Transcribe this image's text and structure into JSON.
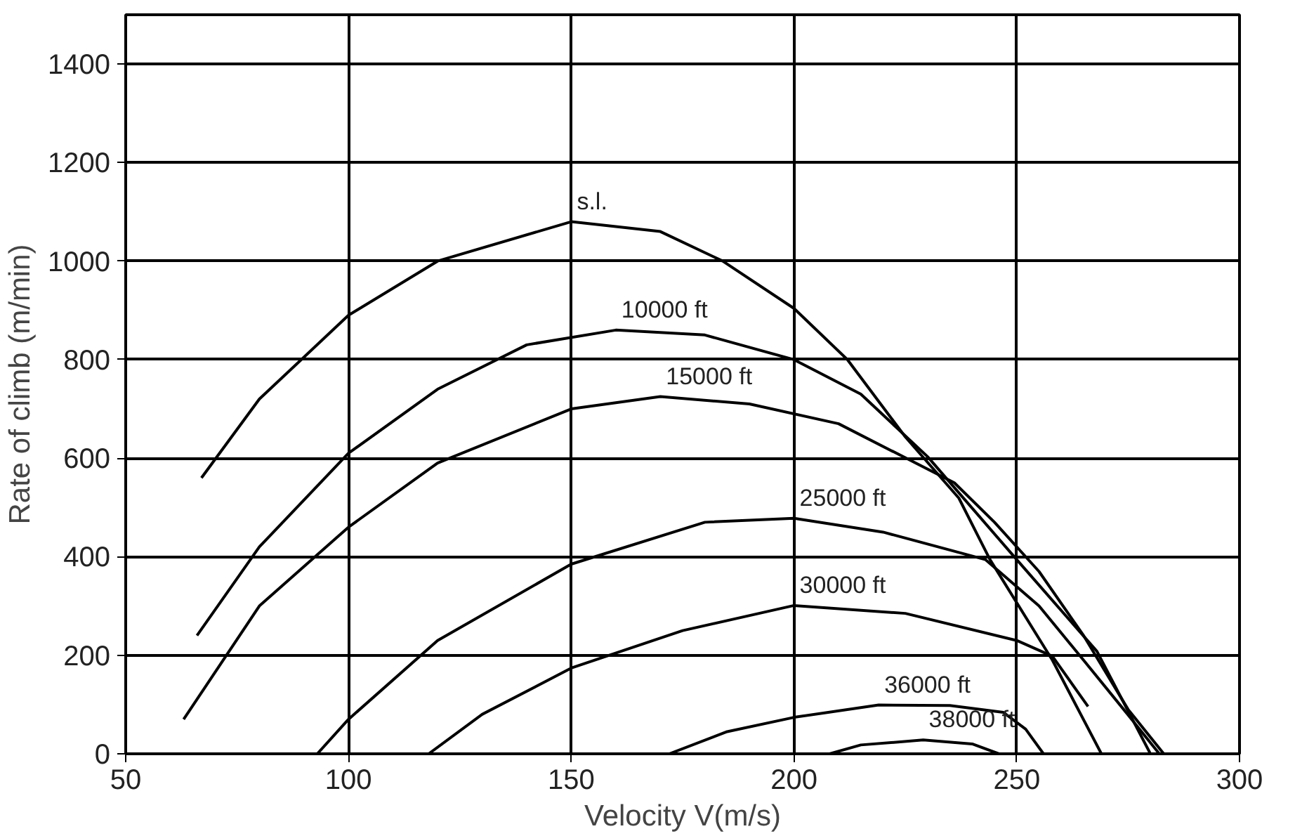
{
  "chart_data": {
    "type": "line",
    "xlabel": "Velocity V(m/s)",
    "ylabel": "Rate of climb (m/min)",
    "xlim": [
      50,
      300
    ],
    "ylim": [
      0,
      1500
    ],
    "xticks": [
      50,
      100,
      150,
      200,
      250,
      300
    ],
    "yticks": [
      0,
      200,
      400,
      600,
      800,
      1000,
      1200,
      1400
    ],
    "grid": true,
    "line_style": "solid",
    "series": [
      {
        "name": "s.l.",
        "color": "#000000",
        "x": [
          67,
          80,
          100,
          120,
          150,
          170,
          184,
          200,
          212,
          225,
          237,
          244,
          258,
          269
        ],
        "values": [
          560,
          720,
          890,
          1000,
          1080,
          1060,
          1000,
          904,
          800,
          643,
          519,
          394,
          190,
          0
        ]
      },
      {
        "name": "10000 ft",
        "color": "#000000",
        "x": [
          66,
          80,
          100,
          120,
          140,
          160,
          180,
          200,
          215,
          230,
          250,
          268,
          280
        ],
        "values": [
          240,
          420,
          610,
          740,
          830,
          860,
          850,
          800,
          730,
          603,
          394,
          208,
          0
        ]
      },
      {
        "name": "15000 ft",
        "color": "#000000",
        "x": [
          63,
          80,
          100,
          120,
          150,
          170,
          190,
          210,
          236,
          245,
          255,
          265,
          275,
          283
        ],
        "values": [
          70,
          300,
          460,
          590,
          700,
          725,
          710,
          670,
          550,
          470,
          370,
          240,
          90,
          0
        ]
      },
      {
        "name": "25000 ft",
        "color": "#000000",
        "x": [
          93,
          100,
          120,
          150,
          180,
          200,
          220,
          243,
          255,
          265,
          274,
          282
        ],
        "values": [
          0,
          70,
          230,
          385,
          470,
          478,
          450,
          394,
          300,
          190,
          90,
          0
        ]
      },
      {
        "name": "30000 ft",
        "color": "#000000",
        "x": [
          118,
          130,
          150,
          175,
          200,
          225,
          250,
          258,
          266
        ],
        "values": [
          0,
          80,
          174,
          250,
          301,
          285,
          230,
          198,
          96
        ]
      },
      {
        "name": "36000 ft",
        "color": "#000000",
        "x": [
          172,
          185,
          200,
          219,
          235,
          247,
          252,
          256
        ],
        "values": [
          0,
          45,
          74,
          99,
          98,
          84,
          50,
          0
        ]
      },
      {
        "name": "38000 ft",
        "color": "#000000",
        "x": [
          208,
          215,
          229,
          240,
          246
        ],
        "values": [
          0,
          18,
          28,
          20,
          0
        ]
      }
    ]
  }
}
